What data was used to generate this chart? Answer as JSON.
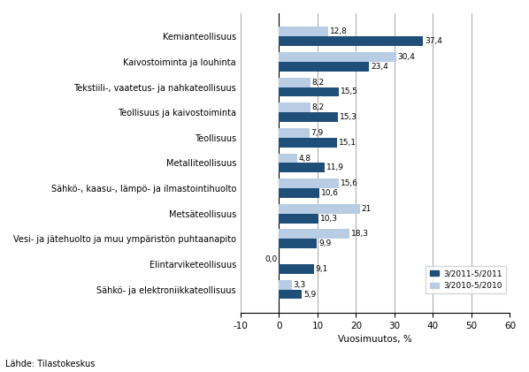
{
  "categories": [
    "Kemianteollisuus",
    "Kaivostoiminta ja louhinta",
    "Tekstiili-, vaatetus- ja nahkateollisuus",
    "Teollisuus ja kaivostoiminta",
    "Teollisuus",
    "Metalliteollisuus",
    "Sähkö-, kaasu-, lämpö- ja ilmastointihuolto",
    "Metsäteollisuus",
    "Vesi- ja jätehuolto ja muu ympäristön puhtaanapito",
    "Elintarviketeollisuus",
    "Sähkö- ja elektroniikkateollisuus"
  ],
  "values_2011": [
    37.4,
    23.4,
    15.5,
    15.3,
    15.1,
    11.9,
    10.6,
    10.3,
    9.9,
    9.1,
    5.9
  ],
  "values_2010": [
    12.8,
    30.4,
    8.2,
    8.2,
    7.9,
    4.8,
    15.6,
    21.0,
    18.3,
    0.0,
    3.3
  ],
  "color_2011": "#1f4e79",
  "color_2010": "#b8cce4",
  "legend_2011": "3/2011-5/2011",
  "legend_2010": "3/2010-5/2010",
  "xlabel": "Vuosimuutos, %",
  "xlim": [
    -10,
    60
  ],
  "xticks": [
    -10,
    0,
    10,
    20,
    30,
    40,
    50,
    60
  ],
  "source": "Lähde: Tilastokeskus",
  "bar_height": 0.38,
  "fontsize_labels": 7.0,
  "fontsize_values": 6.5,
  "fontsize_axis": 7.5
}
